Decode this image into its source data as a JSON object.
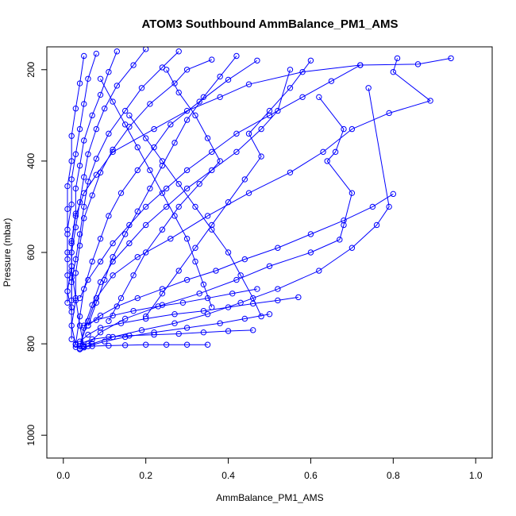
{
  "chart_data": {
    "type": "line",
    "title": "ATOM3 Southbound AmmBalance_PM1_AMS",
    "xlabel": "AmmBalance_PM1_AMS",
    "ylabel": "Pressure (mbar)",
    "xlim": [
      -0.04,
      1.04
    ],
    "ylim": [
      150,
      1050
    ],
    "y_reversed": true,
    "x_ticks": [
      0.0,
      0.2,
      0.4,
      0.6,
      0.8,
      1.0
    ],
    "x_tick_labels": [
      "0.0",
      "0.2",
      "0.4",
      "0.6",
      "0.8",
      "1.0"
    ],
    "y_ticks": [
      200,
      400,
      600,
      800,
      1000
    ],
    "y_tick_labels": [
      "200",
      "400",
      "600",
      "800",
      "1000"
    ],
    "grid": false,
    "color": "#0000ff",
    "marker": "open-circle",
    "series": [
      {
        "points": [
          [
            0.94,
            175
          ],
          [
            0.86,
            188
          ],
          [
            0.72,
            190
          ],
          [
            0.58,
            205
          ],
          [
            0.45,
            232
          ],
          [
            0.38,
            260
          ],
          [
            0.3,
            290
          ],
          [
            0.22,
            330
          ],
          [
            0.12,
            380
          ],
          [
            0.08,
            430
          ],
          [
            0.05,
            470
          ],
          [
            0.03,
            520
          ],
          [
            0.02,
            580
          ],
          [
            0.02,
            640
          ],
          [
            0.03,
            700
          ],
          [
            0.04,
            760
          ],
          [
            0.05,
            805
          ]
        ]
      },
      {
        "points": [
          [
            0.81,
            175
          ],
          [
            0.8,
            205
          ],
          [
            0.89,
            268
          ],
          [
            0.79,
            295
          ],
          [
            0.7,
            330
          ],
          [
            0.63,
            380
          ],
          [
            0.55,
            425
          ],
          [
            0.45,
            470
          ],
          [
            0.35,
            520
          ],
          [
            0.26,
            570
          ],
          [
            0.18,
            610
          ],
          [
            0.12,
            650
          ],
          [
            0.08,
            700
          ],
          [
            0.06,
            750
          ],
          [
            0.04,
            805
          ]
        ]
      },
      {
        "points": [
          [
            0.74,
            240
          ],
          [
            0.79,
            500
          ],
          [
            0.76,
            540
          ],
          [
            0.7,
            590
          ],
          [
            0.62,
            640
          ],
          [
            0.52,
            680
          ],
          [
            0.43,
            710
          ],
          [
            0.35,
            735
          ],
          [
            0.27,
            755
          ],
          [
            0.19,
            770
          ],
          [
            0.12,
            785
          ],
          [
            0.07,
            800
          ],
          [
            0.05,
            808
          ]
        ]
      },
      {
        "points": [
          [
            0.62,
            260
          ],
          [
            0.68,
            330
          ],
          [
            0.66,
            380
          ],
          [
            0.64,
            400
          ],
          [
            0.7,
            470
          ],
          [
            0.68,
            540
          ],
          [
            0.67,
            572
          ],
          [
            0.6,
            600
          ],
          [
            0.5,
            630
          ],
          [
            0.42,
            660
          ],
          [
            0.33,
            690
          ],
          [
            0.24,
            715
          ],
          [
            0.15,
            745
          ],
          [
            0.09,
            775
          ],
          [
            0.06,
            800
          ]
        ]
      },
      {
        "points": [
          [
            0.55,
            200
          ],
          [
            0.52,
            290
          ],
          [
            0.48,
            330
          ],
          [
            0.42,
            380
          ],
          [
            0.36,
            420
          ],
          [
            0.3,
            460
          ],
          [
            0.25,
            500
          ],
          [
            0.2,
            540
          ],
          [
            0.16,
            580
          ],
          [
            0.12,
            620
          ],
          [
            0.09,
            665
          ],
          [
            0.07,
            715
          ],
          [
            0.05,
            765
          ],
          [
            0.04,
            810
          ]
        ]
      },
      {
        "points": [
          [
            0.47,
            180
          ],
          [
            0.4,
            222
          ],
          [
            0.33,
            270
          ],
          [
            0.26,
            320
          ],
          [
            0.22,
            370
          ],
          [
            0.18,
            420
          ],
          [
            0.14,
            470
          ],
          [
            0.11,
            520
          ],
          [
            0.09,
            570
          ],
          [
            0.07,
            620
          ],
          [
            0.05,
            680
          ],
          [
            0.04,
            740
          ],
          [
            0.03,
            800
          ]
        ]
      },
      {
        "points": [
          [
            0.36,
            178
          ],
          [
            0.3,
            200
          ],
          [
            0.27,
            230
          ],
          [
            0.21,
            275
          ],
          [
            0.16,
            325
          ],
          [
            0.12,
            375
          ],
          [
            0.09,
            425
          ],
          [
            0.07,
            475
          ],
          [
            0.05,
            525
          ],
          [
            0.04,
            585
          ],
          [
            0.03,
            645
          ],
          [
            0.03,
            705
          ],
          [
            0.02,
            760
          ],
          [
            0.03,
            802
          ]
        ]
      },
      {
        "points": [
          [
            0.28,
            160
          ],
          [
            0.24,
            195
          ],
          [
            0.19,
            240
          ],
          [
            0.15,
            290
          ],
          [
            0.11,
            340
          ],
          [
            0.08,
            395
          ],
          [
            0.06,
            445
          ],
          [
            0.05,
            500
          ],
          [
            0.04,
            560
          ],
          [
            0.03,
            615
          ],
          [
            0.02,
            665
          ],
          [
            0.02,
            720
          ],
          [
            0.02,
            790
          ]
        ]
      },
      {
        "points": [
          [
            0.2,
            155
          ],
          [
            0.17,
            190
          ],
          [
            0.13,
            235
          ],
          [
            0.1,
            285
          ],
          [
            0.08,
            330
          ],
          [
            0.06,
            385
          ],
          [
            0.05,
            435
          ],
          [
            0.04,
            490
          ],
          [
            0.03,
            545
          ],
          [
            0.02,
            600
          ],
          [
            0.02,
            655
          ],
          [
            0.02,
            705
          ]
        ]
      },
      {
        "points": [
          [
            0.13,
            160
          ],
          [
            0.11,
            205
          ],
          [
            0.09,
            255
          ],
          [
            0.07,
            300
          ],
          [
            0.05,
            355
          ],
          [
            0.04,
            410
          ],
          [
            0.03,
            460
          ],
          [
            0.03,
            515
          ],
          [
            0.02,
            575
          ],
          [
            0.02,
            630
          ],
          [
            0.01,
            685
          ],
          [
            0.02,
            730
          ]
        ]
      },
      {
        "points": [
          [
            0.08,
            165
          ],
          [
            0.06,
            220
          ],
          [
            0.05,
            275
          ],
          [
            0.04,
            330
          ],
          [
            0.03,
            385
          ],
          [
            0.02,
            440
          ],
          [
            0.02,
            495
          ],
          [
            0.01,
            550
          ],
          [
            0.01,
            600
          ],
          [
            0.01,
            650
          ],
          [
            0.01,
            710
          ]
        ]
      },
      {
        "points": [
          [
            0.05,
            170
          ],
          [
            0.04,
            230
          ],
          [
            0.03,
            285
          ],
          [
            0.02,
            345
          ],
          [
            0.02,
            400
          ],
          [
            0.01,
            455
          ],
          [
            0.01,
            505
          ],
          [
            0.01,
            560
          ],
          [
            0.01,
            615
          ]
        ]
      },
      {
        "points": [
          [
            0.5,
            735
          ],
          [
            0.44,
            745
          ],
          [
            0.38,
            755
          ],
          [
            0.3,
            765
          ],
          [
            0.22,
            775
          ],
          [
            0.15,
            785
          ],
          [
            0.1,
            795
          ],
          [
            0.06,
            805
          ],
          [
            0.04,
            812
          ]
        ]
      },
      {
        "points": [
          [
            0.57,
            698
          ],
          [
            0.52,
            705
          ],
          [
            0.46,
            712
          ],
          [
            0.4,
            720
          ],
          [
            0.34,
            728
          ],
          [
            0.27,
            735
          ],
          [
            0.2,
            745
          ],
          [
            0.14,
            755
          ],
          [
            0.09,
            765
          ],
          [
            0.06,
            780
          ],
          [
            0.04,
            795
          ]
        ]
      },
      {
        "points": [
          [
            0.47,
            680
          ],
          [
            0.41,
            690
          ],
          [
            0.35,
            700
          ],
          [
            0.29,
            710
          ],
          [
            0.23,
            718
          ],
          [
            0.17,
            728
          ],
          [
            0.12,
            738
          ],
          [
            0.08,
            748
          ],
          [
            0.05,
            760
          ]
        ]
      },
      {
        "points": [
          [
            0.35,
            802
          ],
          [
            0.3,
            802
          ],
          [
            0.25,
            802
          ],
          [
            0.2,
            802
          ],
          [
            0.15,
            803
          ],
          [
            0.11,
            804
          ],
          [
            0.07,
            805
          ],
          [
            0.05,
            806
          ],
          [
            0.03,
            807
          ]
        ]
      },
      {
        "points": [
          [
            0.46,
            770
          ],
          [
            0.4,
            772
          ],
          [
            0.34,
            775
          ],
          [
            0.28,
            778
          ],
          [
            0.22,
            780
          ],
          [
            0.16,
            782
          ],
          [
            0.11,
            785
          ],
          [
            0.07,
            790
          ],
          [
            0.04,
            800
          ]
        ]
      },
      {
        "points": [
          [
            0.8,
            472
          ],
          [
            0.75,
            500
          ],
          [
            0.68,
            530
          ],
          [
            0.6,
            560
          ],
          [
            0.52,
            590
          ],
          [
            0.44,
            615
          ],
          [
            0.37,
            640
          ],
          [
            0.3,
            660
          ],
          [
            0.24,
            680
          ],
          [
            0.18,
            700
          ],
          [
            0.13,
            718
          ],
          [
            0.09,
            738
          ],
          [
            0.06,
            760
          ]
        ]
      },
      {
        "points": [
          [
            0.72,
            190
          ],
          [
            0.65,
            225
          ],
          [
            0.58,
            260
          ],
          [
            0.5,
            300
          ],
          [
            0.42,
            340
          ],
          [
            0.36,
            380
          ],
          [
            0.3,
            420
          ],
          [
            0.25,
            460
          ],
          [
            0.2,
            500
          ],
          [
            0.16,
            540
          ],
          [
            0.12,
            580
          ],
          [
            0.09,
            620
          ],
          [
            0.06,
            660
          ],
          [
            0.04,
            700
          ]
        ]
      },
      {
        "points": [
          [
            0.42,
            170
          ],
          [
            0.38,
            215
          ],
          [
            0.34,
            260
          ],
          [
            0.3,
            310
          ],
          [
            0.27,
            360
          ],
          [
            0.24,
            410
          ],
          [
            0.21,
            460
          ],
          [
            0.18,
            510
          ],
          [
            0.15,
            560
          ],
          [
            0.12,
            610
          ],
          [
            0.1,
            660
          ],
          [
            0.08,
            710
          ],
          [
            0.06,
            760
          ]
        ]
      },
      {
        "points": [
          [
            0.25,
            200
          ],
          [
            0.28,
            250
          ],
          [
            0.32,
            300
          ],
          [
            0.35,
            350
          ],
          [
            0.38,
            400
          ],
          [
            0.33,
            450
          ],
          [
            0.28,
            500
          ],
          [
            0.24,
            550
          ],
          [
            0.2,
            600
          ],
          [
            0.17,
            650
          ],
          [
            0.14,
            700
          ],
          [
            0.11,
            750
          ]
        ]
      },
      {
        "points": [
          [
            0.6,
            180
          ],
          [
            0.55,
            240
          ],
          [
            0.5,
            290
          ],
          [
            0.45,
            340
          ],
          [
            0.48,
            390
          ],
          [
            0.44,
            440
          ],
          [
            0.4,
            490
          ],
          [
            0.36,
            540
          ],
          [
            0.32,
            590
          ],
          [
            0.28,
            640
          ],
          [
            0.24,
            690
          ],
          [
            0.2,
            740
          ]
        ]
      },
      {
        "points": [
          [
            0.16,
            300
          ],
          [
            0.2,
            350
          ],
          [
            0.24,
            400
          ],
          [
            0.28,
            450
          ],
          [
            0.32,
            500
          ],
          [
            0.36,
            550
          ],
          [
            0.4,
            600
          ],
          [
            0.43,
            650
          ],
          [
            0.46,
            700
          ],
          [
            0.48,
            740
          ]
        ]
      },
      {
        "points": [
          [
            0.09,
            220
          ],
          [
            0.12,
            270
          ],
          [
            0.15,
            320
          ],
          [
            0.18,
            370
          ],
          [
            0.21,
            420
          ],
          [
            0.24,
            470
          ],
          [
            0.27,
            520
          ],
          [
            0.3,
            570
          ],
          [
            0.32,
            620
          ],
          [
            0.34,
            670
          ],
          [
            0.36,
            720
          ]
        ]
      }
    ]
  }
}
